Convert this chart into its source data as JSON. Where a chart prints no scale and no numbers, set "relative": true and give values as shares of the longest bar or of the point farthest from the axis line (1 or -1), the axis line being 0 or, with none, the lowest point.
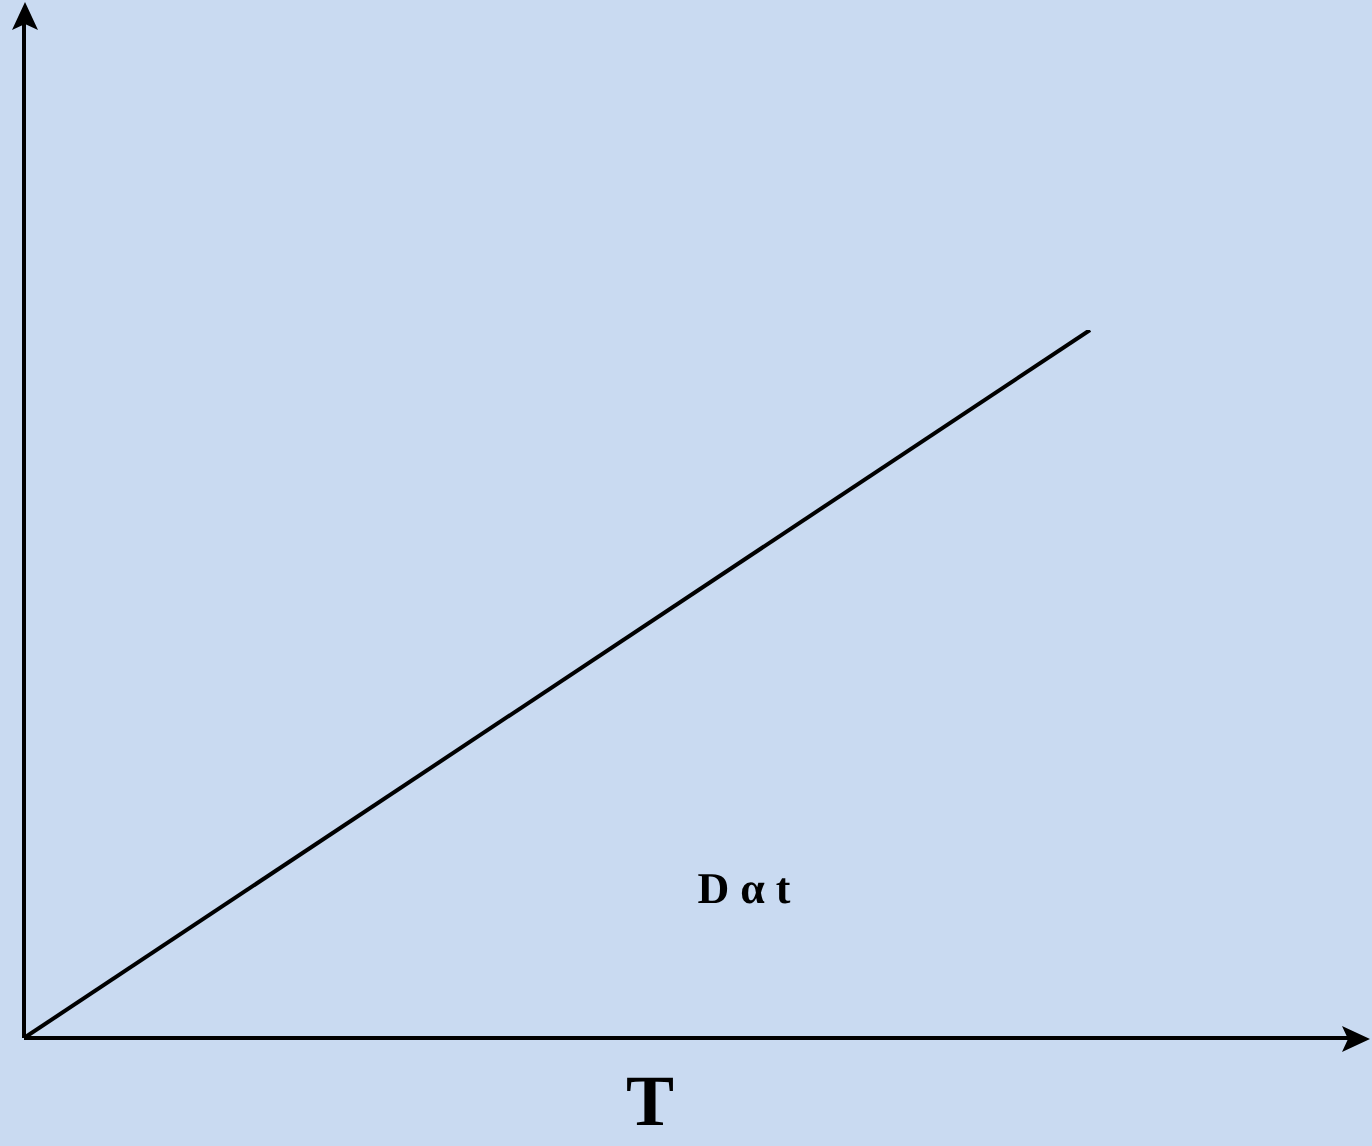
{
  "chart_data": {
    "type": "line",
    "relative": true,
    "xlabel": "T",
    "annotations": [
      "D α t"
    ],
    "categories": [
      null,
      null
    ],
    "series": [
      {
        "color": "#000000",
        "values": [
          0,
          1
        ]
      }
    ],
    "tick_labels": false,
    "legend": false,
    "marker": "none",
    "line_style": "solid"
  }
}
